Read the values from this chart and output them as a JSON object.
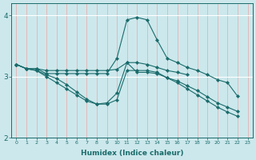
{
  "xlabel": "Humidex (Indice chaleur)",
  "x": [
    0,
    1,
    2,
    3,
    4,
    5,
    6,
    7,
    8,
    9,
    10,
    11,
    12,
    13,
    14,
    15,
    16,
    17,
    18,
    19,
    20,
    21,
    22,
    23
  ],
  "line1": [
    3.2,
    3.13,
    3.13,
    3.05,
    3.05,
    3.05,
    3.05,
    3.05,
    3.05,
    3.05,
    3.3,
    3.93,
    3.97,
    3.93,
    3.6,
    3.3,
    3.23,
    3.15,
    3.1,
    3.03,
    2.95,
    2.9,
    2.68,
    null
  ],
  "line2": [
    3.2,
    3.13,
    3.13,
    3.1,
    3.1,
    3.1,
    3.1,
    3.1,
    3.1,
    3.1,
    3.12,
    3.23,
    3.23,
    3.2,
    3.15,
    3.1,
    3.07,
    3.03,
    null,
    null,
    null,
    null,
    null,
    null
  ],
  "line3": [
    3.2,
    3.13,
    3.1,
    3.03,
    2.97,
    2.87,
    2.75,
    2.63,
    2.55,
    2.57,
    2.73,
    3.23,
    3.07,
    3.07,
    3.05,
    2.98,
    2.93,
    2.85,
    2.77,
    2.67,
    2.57,
    2.5,
    2.43,
    null
  ],
  "line4": [
    3.2,
    3.13,
    3.1,
    3.0,
    2.9,
    2.8,
    2.7,
    2.6,
    2.55,
    2.55,
    2.62,
    3.1,
    3.1,
    3.1,
    3.07,
    2.98,
    2.9,
    2.8,
    2.7,
    2.6,
    2.5,
    2.42,
    2.35,
    null
  ],
  "bg_color": "#cce8ec",
  "grid_color": "#ffffff",
  "line_color": "#1a6b6b",
  "ylim": [
    2.0,
    4.2
  ],
  "yticks": [
    2,
    3,
    4
  ],
  "xlim": [
    -0.5,
    23.5
  ]
}
